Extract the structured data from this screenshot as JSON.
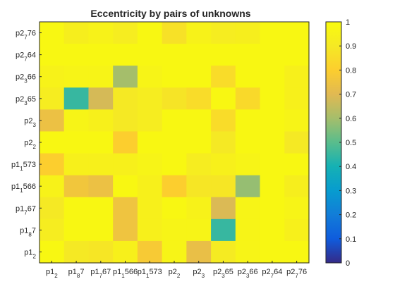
{
  "chart_data": {
    "type": "heatmap",
    "title": "Eccentricity by pairs of unknowns",
    "x_labels": [
      {
        "base": "p1",
        "sub": "2",
        "tail": ""
      },
      {
        "base": "p1",
        "sub": "8",
        "tail": "7"
      },
      {
        "base": "p1",
        "sub": "7",
        "tail": "67"
      },
      {
        "base": "p1",
        "sub": "1",
        "tail": "566"
      },
      {
        "base": "p1",
        "sub": "1",
        "tail": "573"
      },
      {
        "base": "p2",
        "sub": "2",
        "tail": ""
      },
      {
        "base": "p2",
        "sub": "3",
        "tail": ""
      },
      {
        "base": "p2",
        "sub": "3",
        "tail": "65"
      },
      {
        "base": "p2",
        "sub": "3",
        "tail": "66"
      },
      {
        "base": "p2",
        "sub": "7",
        "tail": "64"
      },
      {
        "base": "p2",
        "sub": "7",
        "tail": "76"
      }
    ],
    "y_labels_top_to_bottom": [
      {
        "base": "p2",
        "sub": "7",
        "tail": "76"
      },
      {
        "base": "p2",
        "sub": "7",
        "tail": "64"
      },
      {
        "base": "p2",
        "sub": "3",
        "tail": "66"
      },
      {
        "base": "p2",
        "sub": "3",
        "tail": "65"
      },
      {
        "base": "p2",
        "sub": "3",
        "tail": ""
      },
      {
        "base": "p2",
        "sub": "2",
        "tail": ""
      },
      {
        "base": "p1",
        "sub": "1",
        "tail": "573"
      },
      {
        "base": "p1",
        "sub": "1",
        "tail": "566"
      },
      {
        "base": "p1",
        "sub": "7",
        "tail": "67"
      },
      {
        "base": "p1",
        "sub": "8",
        "tail": "7"
      },
      {
        "base": "p1",
        "sub": "2",
        "tail": ""
      }
    ],
    "values_top_to_bottom": [
      [
        0.98,
        0.93,
        0.95,
        0.92,
        0.98,
        0.87,
        0.95,
        0.92,
        0.93,
        0.98,
        0.98
      ],
      [
        0.98,
        0.98,
        0.98,
        0.98,
        0.98,
        0.98,
        0.98,
        0.98,
        0.98,
        0.98,
        0.98
      ],
      [
        0.95,
        0.96,
        0.96,
        0.6,
        0.96,
        0.98,
        0.98,
        0.85,
        0.98,
        0.98,
        0.94
      ],
      [
        0.92,
        0.45,
        0.68,
        0.9,
        0.92,
        0.88,
        0.85,
        0.98,
        0.84,
        0.98,
        0.94
      ],
      [
        0.74,
        0.96,
        0.94,
        0.9,
        0.92,
        0.98,
        0.98,
        0.85,
        0.98,
        0.98,
        0.96
      ],
      [
        0.98,
        0.98,
        0.98,
        0.8,
        0.98,
        0.98,
        0.98,
        0.9,
        0.98,
        0.98,
        0.9
      ],
      [
        0.8,
        0.94,
        0.94,
        0.94,
        0.96,
        0.98,
        0.92,
        0.94,
        0.96,
        0.98,
        0.98
      ],
      [
        0.95,
        0.76,
        0.74,
        0.98,
        0.94,
        0.8,
        0.89,
        0.89,
        0.58,
        0.98,
        0.93
      ],
      [
        0.9,
        0.98,
        0.98,
        0.75,
        0.94,
        0.98,
        0.95,
        0.69,
        0.96,
        0.98,
        0.96
      ],
      [
        0.92,
        0.98,
        0.98,
        0.75,
        0.94,
        0.96,
        0.96,
        0.45,
        0.96,
        0.98,
        0.94
      ],
      [
        0.98,
        0.9,
        0.89,
        0.94,
        0.78,
        0.96,
        0.73,
        0.91,
        0.96,
        0.98,
        0.98
      ]
    ],
    "colormap": "parula",
    "colorbar": {
      "clim": [
        0,
        1
      ],
      "ticks": [
        0,
        0.1,
        0.2,
        0.3,
        0.4,
        0.5,
        0.6,
        0.7,
        0.8,
        0.9,
        1
      ],
      "tick_labels": [
        "0",
        "0.1",
        "0.2",
        "0.3",
        "0.4",
        "0.5",
        "0.6",
        "0.7",
        "0.8",
        "0.9",
        "1"
      ]
    },
    "grid": false,
    "legend": "colorbar-right"
  },
  "colors": {
    "axis": "#262626",
    "background": "#ffffff"
  }
}
